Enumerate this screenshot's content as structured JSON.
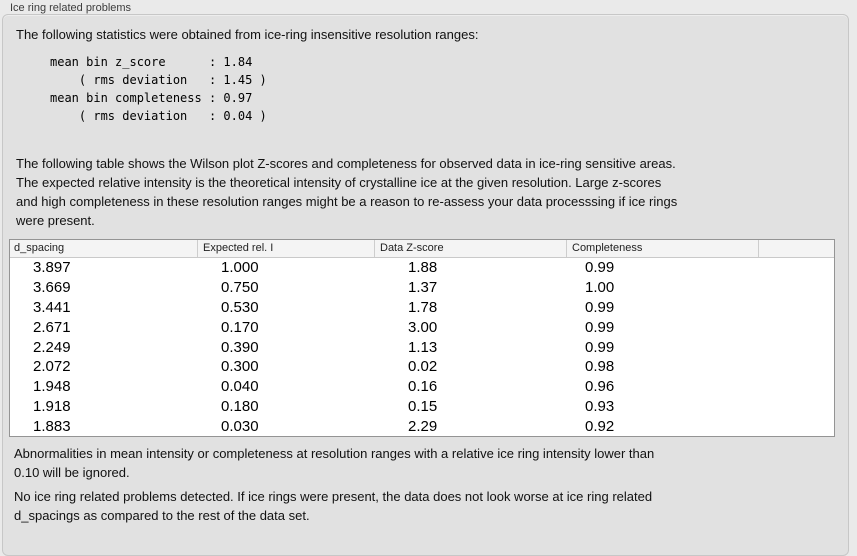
{
  "panel": {
    "title": "Ice ring related problems"
  },
  "intro_text": "The following statistics were obtained from ice-ring insensitive resolution ranges:",
  "stats_block": "mean bin z_score      : 1.84\n    ( rms deviation   : 1.45 )\nmean bin completeness : 0.97\n    ( rms deviation   : 0.04 )",
  "description_text": "The following table shows the Wilson plot Z-scores and completeness for observed data in ice-ring sensitive areas.\nThe expected relative intensity is the theoretical intensity of crystalline ice at the given resolution. Large z-scores\nand high completeness in these resolution ranges might be a reason to re-assess your data processsing if ice rings\nwere present.",
  "table": {
    "headers": [
      "d_spacing",
      "Expected rel. I",
      "Data Z-score",
      "Completeness",
      ""
    ],
    "rows": [
      [
        "3.897",
        "1.000",
        "1.88",
        "0.99"
      ],
      [
        "3.669",
        "0.750",
        "1.37",
        "1.00"
      ],
      [
        "3.441",
        "0.530",
        "1.78",
        "0.99"
      ],
      [
        "2.671",
        "0.170",
        "3.00",
        "0.99"
      ],
      [
        "2.249",
        "0.390",
        "1.13",
        "0.99"
      ],
      [
        "2.072",
        "0.300",
        "0.02",
        "0.98"
      ],
      [
        "1.948",
        "0.040",
        "0.16",
        "0.96"
      ],
      [
        "1.918",
        "0.180",
        "0.15",
        "0.93"
      ],
      [
        "1.883",
        "0.030",
        "2.29",
        "0.92"
      ]
    ]
  },
  "note_text": "Abnormalities in mean intensity or completeness at resolution ranges with a relative ice ring intensity lower than\n0.10 will be ignored.",
  "conclusion_text": "No ice ring related problems detected. If ice rings were present, the data does not look worse at ice ring related\nd_spacings as compared to the rest of the data set.",
  "colors": {
    "page_bg": "#eaeaea",
    "panel_bg": "#e1e1e1",
    "table_bg": "#ffffff",
    "header_bg": "#f4f4f4",
    "table_border": "#949494"
  }
}
